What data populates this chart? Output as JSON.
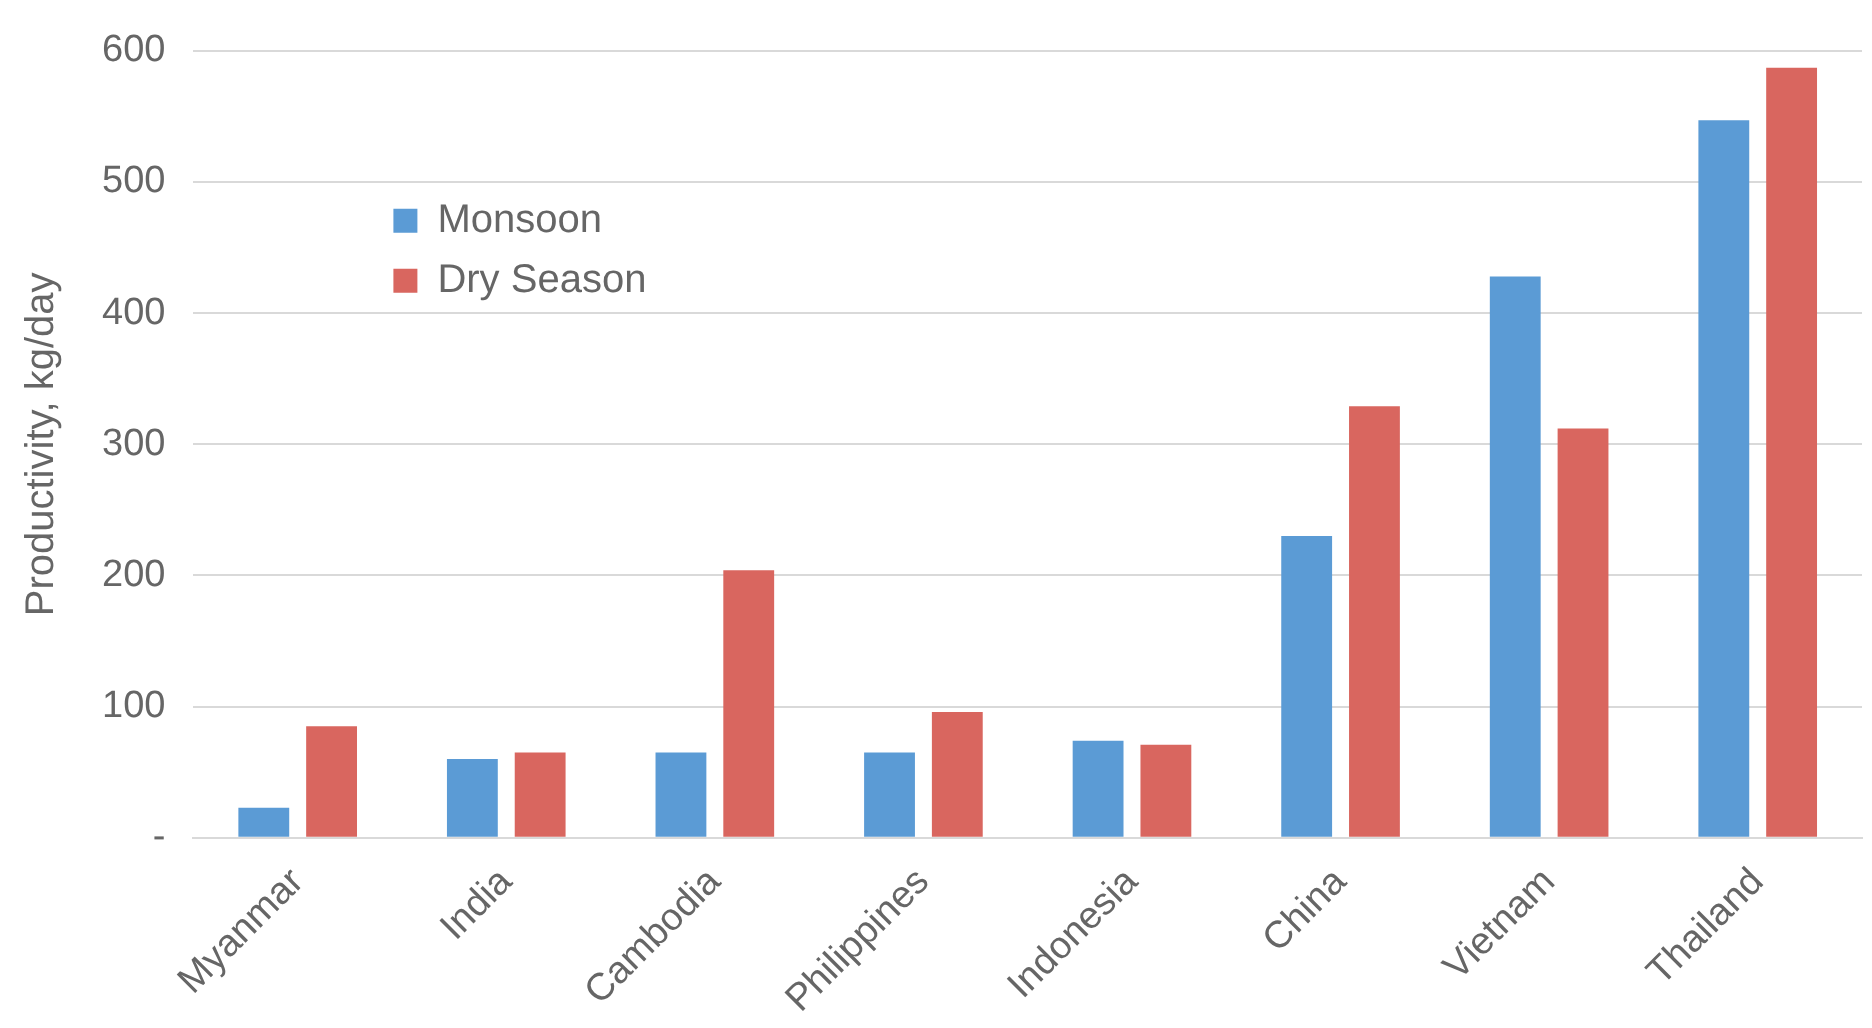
{
  "chart_data": {
    "type": "bar",
    "ylabel": "Productivity, kg/day",
    "categories": [
      "Myanmar",
      "India",
      "Cambodia",
      "Philippines",
      "Indonesia",
      "China",
      "Vietnam",
      "Thailand"
    ],
    "series": [
      {
        "name": "Monsoon",
        "color": "#5b9bd5",
        "values": [
          23,
          60,
          65,
          65,
          74,
          230,
          428,
          547
        ]
      },
      {
        "name": "Dry Season",
        "color": "#d9665f",
        "values": [
          85,
          65,
          204,
          96,
          71,
          329,
          312,
          587
        ]
      }
    ],
    "ylim": [
      0,
      600
    ],
    "yticks": [
      {
        "value": 0,
        "label": "-"
      },
      100,
      200,
      300,
      400,
      500,
      600
    ],
    "grid": "y",
    "legend": "top left"
  }
}
